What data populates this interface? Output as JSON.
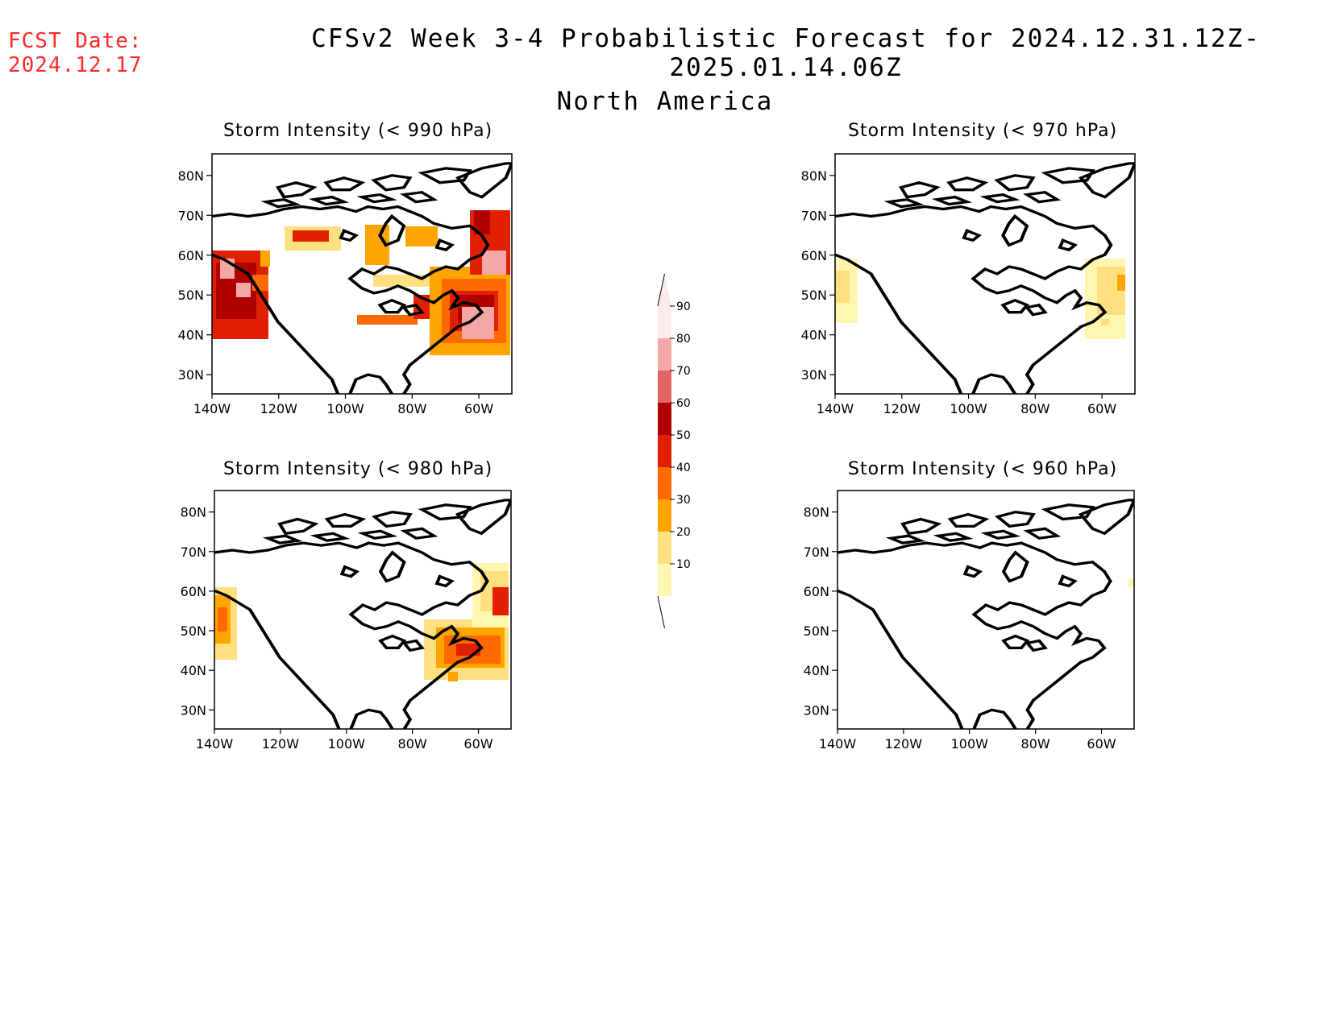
{
  "header": {
    "fcst_label": "FCST Date:",
    "fcst_date": "2024.12.17",
    "title": "CFSv2 Week 3-4 Probabilistic Forecast for 2024.12.31.12Z-2025.01.14.06Z",
    "region": "North America"
  },
  "panels": [
    {
      "title": "Storm Intensity (< 990 hPa)"
    },
    {
      "title": "Storm Intensity (< 970 hPa)"
    },
    {
      "title": "Storm Intensity (< 980 hPa)"
    },
    {
      "title": "Storm Intensity (< 960 hPa)"
    }
  ],
  "axes": {
    "lat_ticks": [
      "80N",
      "70N",
      "60N",
      "50N",
      "40N",
      "30N"
    ],
    "lon_ticks": [
      "140W",
      "120W",
      "100W",
      "80W",
      "60W"
    ]
  },
  "colorbar": {
    "labels": [
      "90",
      "80",
      "70",
      "60",
      "50",
      "40",
      "30",
      "20",
      "10"
    ],
    "colors": [
      "#fdeaea",
      "#f4a7a7",
      "#e06666",
      "#b00000",
      "#e02000",
      "#ff6a00",
      "#ffa500",
      "#ffe080",
      "#fff7b0"
    ]
  }
}
